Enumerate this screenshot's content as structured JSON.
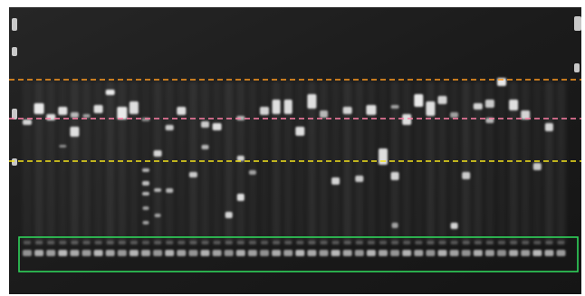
{
  "image": {
    "subject": "gel-electrophoresis",
    "background_color": "#1e1e1e",
    "band_color": "#f2f2f2"
  },
  "overlays": {
    "guides": [
      {
        "name": "orange-guide-line",
        "color": "#ff9a1f",
        "style": "dashed"
      },
      {
        "name": "pink-guide-line",
        "color": "#ff7fa6",
        "style": "dashed"
      },
      {
        "name": "yellow-guide-line",
        "color": "#f5e41c",
        "style": "dashed"
      }
    ],
    "highlight_box": {
      "name": "loading-control-box",
      "color": "#2fd35a",
      "style": "solid"
    }
  }
}
